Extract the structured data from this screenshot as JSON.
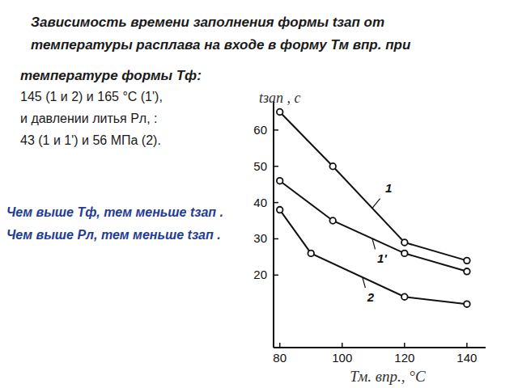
{
  "slide": {
    "title": [
      "Зависимость времени заполнения  формы tзап  от",
      "температуры расплава на входе в форму Тм впр. при"
    ],
    "conditions": [
      "температуре формы Тф:",
      "145 (1 и 2) и 165 °С (1'),",
      "и давлении литья Рл, :",
      "43 (1 и 1') и 56 МПа (2)."
    ],
    "conclusions": [
      "Чем выше Тф, тем меньше tзап .",
      "Чем выше Рл, тем меньше tзап ."
    ]
  },
  "chart_data": {
    "type": "line",
    "xlabel": "Тм. впр., °С",
    "ylabel": "tзап , с",
    "xlim": [
      78,
      146
    ],
    "ylim": [
      0,
      68
    ],
    "xticks": [
      80,
      100,
      120,
      140
    ],
    "yticks": [
      20,
      30,
      40,
      50,
      60
    ],
    "grid": false,
    "marker": "circle",
    "line_style": "solid",
    "series": [
      {
        "name": "1",
        "color": "#111111",
        "x": [
          80,
          97,
          120,
          140
        ],
        "values": [
          65,
          50,
          29,
          24
        ]
      },
      {
        "name": "1'",
        "color": "#111111",
        "x": [
          80,
          97,
          120,
          140
        ],
        "values": [
          46,
          35,
          26,
          21
        ]
      },
      {
        "name": "2",
        "color": "#111111",
        "x": [
          80,
          90,
          120,
          140
        ],
        "values": [
          38,
          26,
          14,
          12
        ]
      }
    ]
  }
}
